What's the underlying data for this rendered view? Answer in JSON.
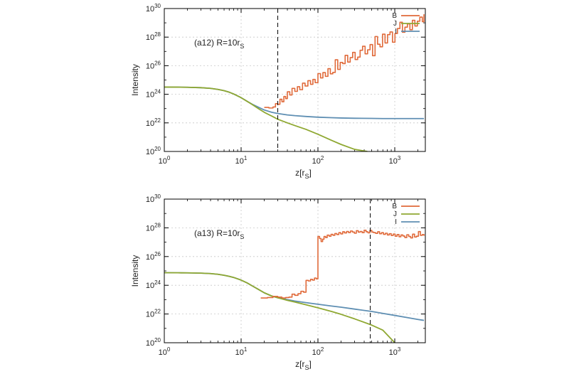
{
  "colors": {
    "B": "#e06a3a",
    "J": "#8fa832",
    "I": "#5f8fb3",
    "frame": "#000000",
    "grid": "#c8c8c8",
    "dash": "#000000"
  },
  "chart_data": [
    {
      "type": "line",
      "panel_id": "a12",
      "annotation": {
        "prefix": "(a12)  R=10r",
        "sub": "S"
      },
      "xlabel": {
        "main": "z[r",
        "sub": "S",
        "close": "]"
      },
      "ylabel": "Intensity",
      "x_scale": "log",
      "y_scale": "log",
      "xlim": [
        1,
        2500
      ],
      "ylim": [
        1e+20,
        1e+30
      ],
      "x_ticks": [
        1,
        10,
        100,
        1000
      ],
      "y_ticks": [
        1e+20,
        1e+22,
        1e+24,
        1e+26,
        1e+28,
        1e+30
      ],
      "x_tick_labels": [
        {
          "base": "10",
          "exp": "0"
        },
        {
          "base": "10",
          "exp": "1"
        },
        {
          "base": "10",
          "exp": "2"
        },
        {
          "base": "10",
          "exp": "3"
        }
      ],
      "y_tick_labels": [
        {
          "base": "10",
          "exp": "20"
        },
        {
          "base": "10",
          "exp": "22"
        },
        {
          "base": "10",
          "exp": "24"
        },
        {
          "base": "10",
          "exp": "26"
        },
        {
          "base": "10",
          "exp": "28"
        },
        {
          "base": "10",
          "exp": "30"
        }
      ],
      "grid": true,
      "legend_position": "top-right",
      "vline": 30,
      "series": [
        {
          "name": "B",
          "color": "#e06a3a",
          "x": [
            20,
            23,
            26,
            28,
            30,
            32,
            34,
            36,
            38,
            40,
            43,
            46,
            50,
            54,
            58,
            63,
            68,
            74,
            80,
            86,
            92,
            100,
            108,
            116,
            125,
            135,
            145,
            156,
            168,
            181,
            195,
            210,
            226,
            244,
            263,
            283,
            305,
            329,
            354,
            381,
            411,
            443,
            477,
            514,
            554,
            597,
            643,
            693,
            747,
            805,
            867,
            934,
            1006,
            1084,
            1168,
            1258,
            1356,
            1461,
            1574,
            1696,
            1827,
            1968,
            2120,
            2284,
            2400
          ],
          "y": [
            1.2e+23,
            1.1e+23,
            1.3e+23,
            2.2e+23,
            2e+23,
            4.5e+23,
            3e+23,
            7e+23,
            5e+23,
            1.5e+24,
            9e+23,
            2.6e+24,
            1.6e+24,
            3.4e+24,
            2.1e+24,
            6e+24,
            3.8e+24,
            9e+24,
            5e+24,
            1.1e+25,
            6.5e+24,
            2.8e+25,
            1.4e+25,
            3.3e+25,
            1.8e+25,
            6.2e+25,
            2.7e+25,
            3.4e+25,
            2.6e+26,
            5.5e+25,
            1.7e+26,
            1.4e+26,
            5.3e+26,
            1.8e+26,
            3.7e+26,
            8.5e+26,
            2.7e+26,
            4e+26,
            1.2e+27,
            2.3e+27,
            6.8e+26,
            1.3e+27,
            3e+27,
            5e+26,
            1.1e+28,
            3.2e+27,
            2.1e+27,
            1.6e+28,
            3.9e+27,
            1.5e+28,
            2.3e+28,
            4.4e+27,
            1.8e+28,
            4e+28,
            1.1e+29,
            2.2e+28,
            5e+28,
            8.5e+28,
            3.3e+28,
            1.5e+29,
            6e+28,
            1.3e+29,
            2.5e+29,
            1.2e+29,
            4e+29
          ]
        },
        {
          "name": "J",
          "color": "#8fa832",
          "x": [
            1,
            1.5,
            2,
            3,
            4,
            5,
            6,
            7,
            8,
            10,
            12,
            14,
            17,
            20,
            25,
            30,
            40,
            50,
            70,
            100,
            150,
            200,
            300,
            440
          ],
          "y": [
            3.2e+24,
            3.15e+24,
            3.1e+24,
            2.9e+24,
            2.6e+24,
            2.2e+24,
            1.8e+24,
            1.4e+24,
            1.05e+24,
            5.8e+23,
            3.2e+23,
            1.9e+23,
            9.5e+22,
            5.5e+22,
            3e+22,
            1.8e+22,
            1e+22,
            6.5e+21,
            3.5e+21,
            1.6e+21,
            6e+20,
            3.1e+20,
            1.4e+20,
            1e+20
          ]
        },
        {
          "name": "I",
          "color": "#5f8fb3",
          "x": [
            1,
            1.5,
            2,
            3,
            4,
            5,
            6,
            7,
            8,
            10,
            12,
            14,
            17,
            20,
            25,
            30,
            40,
            50,
            70,
            100,
            150,
            200,
            300,
            500,
            700,
            1000,
            1500,
            2000,
            2400
          ],
          "y": [
            3.2e+24,
            3.15e+24,
            3.1e+24,
            2.9e+24,
            2.6e+24,
            2.2e+24,
            1.8e+24,
            1.4e+24,
            1.05e+24,
            5.8e+23,
            3.2e+23,
            2e+23,
            1.2e+23,
            8e+22,
            5.5e+22,
            4.5e+22,
            3.6e+22,
            3.2e+22,
            2.8e+22,
            2.5e+22,
            2.3e+22,
            2.2e+22,
            2.1e+22,
            2.05e+22,
            2e+22,
            2e+22,
            2e+22,
            2e+22,
            2e+22
          ]
        }
      ]
    },
    {
      "type": "line",
      "panel_id": "a13",
      "annotation": {
        "prefix": "(a13)  R=10r",
        "sub": "S"
      },
      "xlabel": {
        "main": "z[r",
        "sub": "S",
        "close": "]"
      },
      "ylabel": "Intensity",
      "x_scale": "log",
      "y_scale": "log",
      "xlim": [
        1,
        2500
      ],
      "ylim": [
        1e+20,
        1e+30
      ],
      "x_ticks": [
        1,
        10,
        100,
        1000
      ],
      "y_ticks": [
        1e+20,
        1e+22,
        1e+24,
        1e+26,
        1e+28,
        1e+30
      ],
      "x_tick_labels": [
        {
          "base": "10",
          "exp": "0"
        },
        {
          "base": "10",
          "exp": "1"
        },
        {
          "base": "10",
          "exp": "2"
        },
        {
          "base": "10",
          "exp": "3"
        }
      ],
      "y_tick_labels": [
        {
          "base": "10",
          "exp": "20"
        },
        {
          "base": "10",
          "exp": "22"
        },
        {
          "base": "10",
          "exp": "24"
        },
        {
          "base": "10",
          "exp": "26"
        },
        {
          "base": "10",
          "exp": "28"
        },
        {
          "base": "10",
          "exp": "30"
        }
      ],
      "grid": true,
      "legend_position": "top-right",
      "vline": 480,
      "series": [
        {
          "name": "B",
          "color": "#e06a3a",
          "x": [
            18,
            22,
            26,
            30,
            34,
            38,
            42,
            46,
            50,
            55,
            60,
            65,
            70,
            75,
            80,
            85,
            90,
            95,
            100,
            105,
            110,
            115,
            120,
            126,
            132,
            140,
            148,
            157,
            166,
            176,
            187,
            198,
            210,
            222,
            236,
            250,
            265,
            281,
            298,
            316,
            335,
            355,
            376,
            399,
            423,
            448,
            475,
            503,
            533,
            565,
            599,
            635,
            673,
            713,
            756,
            801,
            849,
            900,
            954,
            1011,
            1072,
            1136,
            1204,
            1277,
            1353,
            1434,
            1520,
            1612,
            1708,
            1811,
            1919,
            2034,
            2156,
            2285,
            2400
          ],
          "y": [
            1.3e+23,
            1.4e+23,
            1.7e+23,
            1.5e+23,
            1.3e+23,
            1.4e+23,
            1.5e+23,
            2.4e+23,
            2e+23,
            2.6e+23,
            3.8e+23,
            3.3e+23,
            2.2e+24,
            2e+24,
            2.6e+24,
            2.3e+24,
            3.2e+24,
            2.8e+24,
            2.5e+27,
            1.8e+27,
            1.1e+27,
            1.6e+27,
            2.5e+27,
            2.1e+27,
            3.1e+27,
            2.6e+27,
            3.5e+27,
            3e+27,
            4e+27,
            3.4e+27,
            4.6e+27,
            3.8e+27,
            5.3e+27,
            4.4e+27,
            5.6e+27,
            4.7e+27,
            6e+27,
            5.1e+27,
            4.2e+27,
            6.3e+27,
            5e+27,
            5.6e+27,
            4.6e+27,
            6.8e+27,
            5.3e+27,
            4.5e+27,
            6.6e+27,
            5e+27,
            4.6e+27,
            4.1e+27,
            5.3e+27,
            3.9e+27,
            4.6e+27,
            3.5e+27,
            4.2e+27,
            3.2e+27,
            3.9e+27,
            2.9e+27,
            3.7e+27,
            2.6e+27,
            3.4e+27,
            2.4e+27,
            3.2e+27,
            2.7e+27,
            2.1e+27,
            3.3e+27,
            2.5e+27,
            2e+27,
            3.6e+27,
            2.3e+27,
            2.6e+27,
            5.5e+27,
            3e+27,
            3.4e+27,
            2.8e+27
          ]
        },
        {
          "name": "J",
          "color": "#8fa832",
          "x": [
            1,
            1.5,
            2,
            3,
            4,
            5,
            6,
            7,
            8,
            10,
            12,
            14,
            17,
            20,
            25,
            30,
            40,
            50,
            70,
            100,
            150,
            200,
            300,
            500,
            700,
            1000
          ],
          "y": [
            7.5e+24,
            7.4e+24,
            7.3e+24,
            7e+24,
            6.5e+24,
            5.8e+24,
            5e+24,
            4.2e+24,
            3.5e+24,
            2.3e+24,
            1.45e+24,
            9e+23,
            5e+23,
            3e+23,
            1.8e+23,
            1.35e+23,
            9e+22,
            6.8e+22,
            4.4e+22,
            2.7e+22,
            1.5e+22,
            9.5e+21,
            4.6e+21,
            1.7e+21,
            7.5e+20,
            1e+20
          ]
        },
        {
          "name": "I",
          "color": "#5f8fb3",
          "x": [
            1,
            1.5,
            2,
            3,
            4,
            5,
            6,
            7,
            8,
            10,
            12,
            14,
            17,
            20,
            25,
            30,
            40,
            50,
            70,
            100,
            150,
            200,
            300,
            500,
            700,
            1000,
            1500,
            2000,
            2400
          ],
          "y": [
            7.5e+24,
            7.4e+24,
            7.3e+24,
            7e+24,
            6.5e+24,
            5.8e+24,
            5e+24,
            4.2e+24,
            3.5e+24,
            2.3e+24,
            1.45e+24,
            9e+23,
            5e+23,
            3e+23,
            1.8e+23,
            1.35e+23,
            1e+23,
            8e+22,
            6.2e+22,
            4.8e+22,
            3.6e+22,
            3e+22,
            2.2e+22,
            1.5e+22,
            1.1e+22,
            8e+21,
            5.5e+21,
            4.2e+21,
            3.6e+21
          ]
        }
      ]
    }
  ]
}
